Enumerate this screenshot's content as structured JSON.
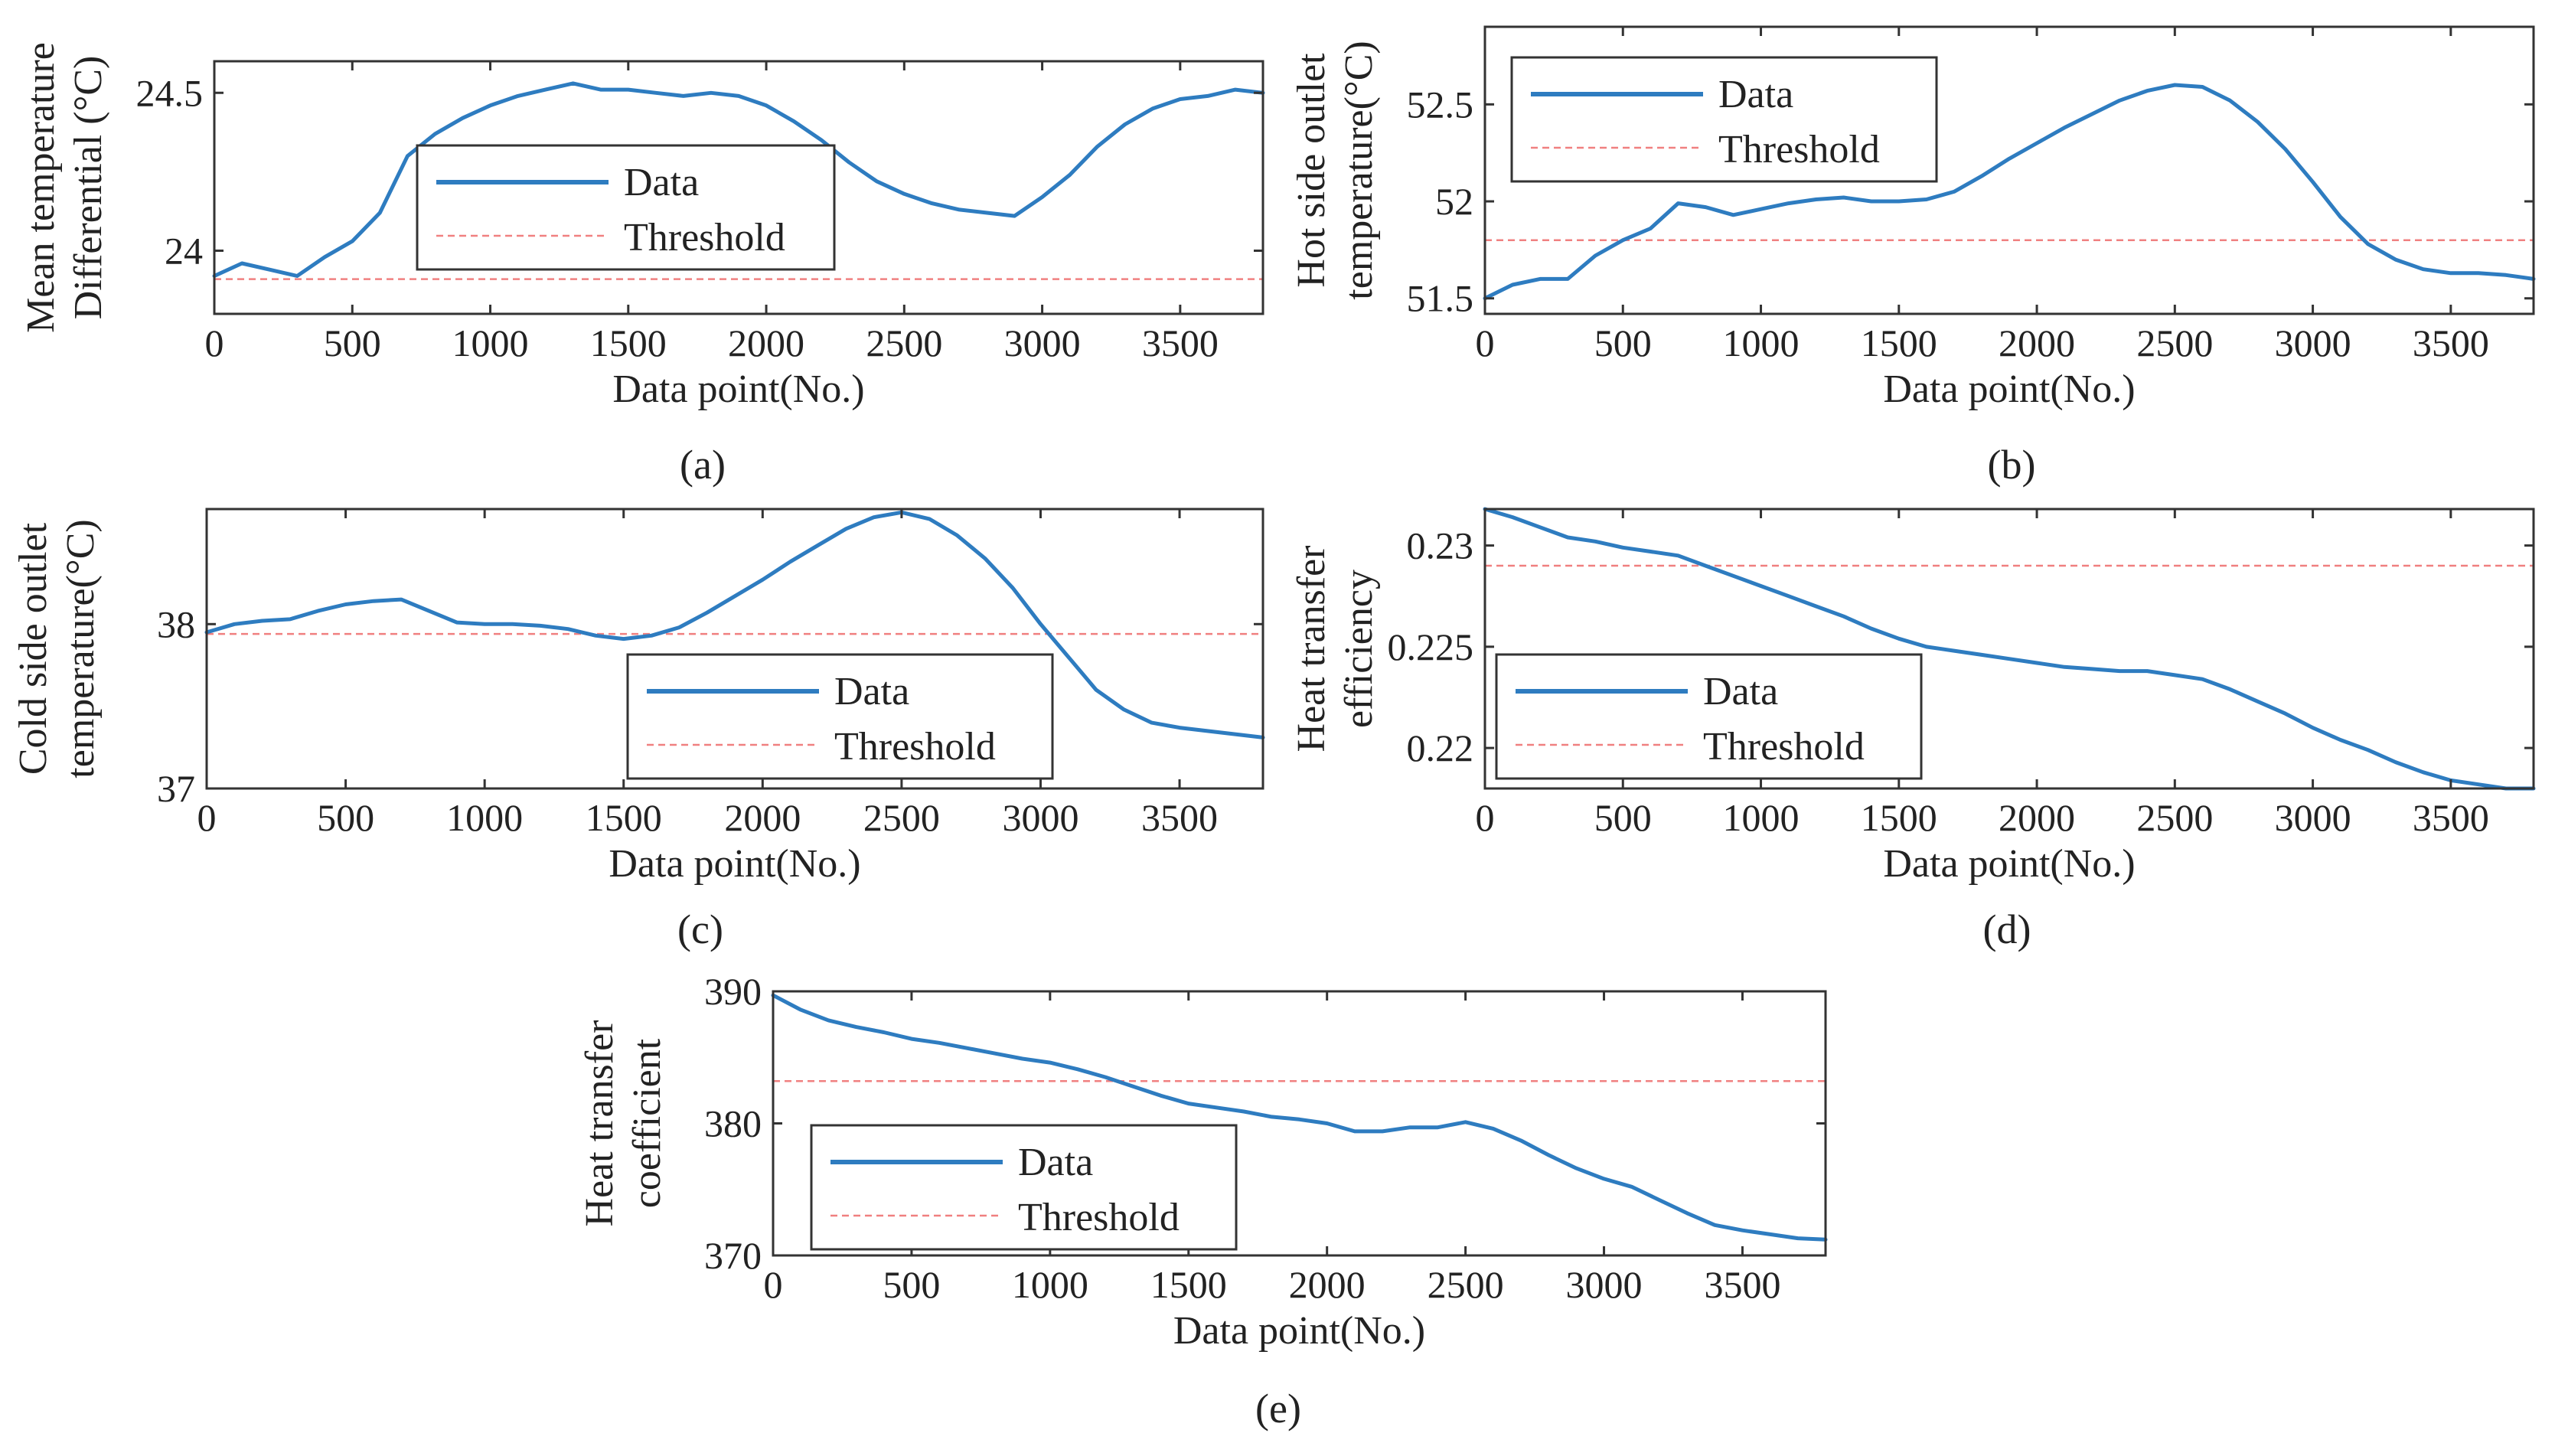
{
  "colors": {
    "data": "#2e7cc0",
    "threshold": "#f08080",
    "axis": "#333333",
    "text": "#222222"
  },
  "chart_data": [
    {
      "id": "a",
      "type": "line",
      "caption": "(a)",
      "xlabel": "Data point(No.)",
      "ylabel": [
        "Mean temperature",
        "Differential (°C)"
      ],
      "xlim": [
        0,
        3800
      ],
      "ylim": [
        23.8,
        24.6
      ],
      "xticks": [
        0,
        500,
        1000,
        1500,
        2000,
        2500,
        3000,
        3500
      ],
      "xtick_labels": [
        "0",
        "500",
        "1000",
        "1500",
        "2000",
        "2500",
        "3000",
        "3500"
      ],
      "yticks": [
        24,
        24.5
      ],
      "ytick_labels": [
        "24",
        "24.5"
      ],
      "legend": {
        "position": "center",
        "labels": [
          "Data",
          "Threshold"
        ]
      },
      "threshold": 23.91,
      "series": [
        {
          "name": "Data",
          "x": [
            0,
            100,
            200,
            300,
            400,
            500,
            600,
            700,
            800,
            900,
            1000,
            1100,
            1200,
            1300,
            1400,
            1500,
            1600,
            1700,
            1800,
            1900,
            2000,
            2100,
            2200,
            2300,
            2400,
            2500,
            2600,
            2700,
            2800,
            2900,
            3000,
            3100,
            3200,
            3300,
            3400,
            3500,
            3600,
            3700,
            3800
          ],
          "y": [
            23.92,
            23.96,
            23.94,
            23.92,
            23.98,
            24.03,
            24.12,
            24.3,
            24.37,
            24.42,
            24.46,
            24.49,
            24.51,
            24.53,
            24.51,
            24.51,
            24.5,
            24.49,
            24.5,
            24.49,
            24.46,
            24.41,
            24.35,
            24.28,
            24.22,
            24.18,
            24.15,
            24.13,
            24.12,
            24.11,
            24.17,
            24.24,
            24.33,
            24.4,
            24.45,
            24.48,
            24.49,
            24.51,
            24.5
          ]
        },
        {
          "name": "Threshold",
          "x": [
            0,
            3800
          ],
          "y": [
            23.91,
            23.91
          ]
        }
      ]
    },
    {
      "id": "b",
      "type": "line",
      "caption": "(b)",
      "xlabel": "Data point(No.)",
      "ylabel": [
        "Hot side outlet",
        "temperature(°C)"
      ],
      "xlim": [
        0,
        3800
      ],
      "ylim": [
        51.42,
        52.9
      ],
      "xticks": [
        0,
        500,
        1000,
        1500,
        2000,
        2500,
        3000,
        3500
      ],
      "xtick_labels": [
        "0",
        "500",
        "1000",
        "1500",
        "2000",
        "2500",
        "3000",
        "3500"
      ],
      "yticks": [
        51.5,
        52,
        52.5
      ],
      "ytick_labels": [
        "51.5",
        "52",
        "52.5"
      ],
      "legend": {
        "position": "top-left",
        "labels": [
          "Data",
          "Threshold"
        ]
      },
      "threshold": 51.8,
      "series": [
        {
          "name": "Data",
          "x": [
            0,
            100,
            200,
            300,
            400,
            500,
            600,
            700,
            800,
            900,
            1000,
            1100,
            1200,
            1300,
            1400,
            1500,
            1600,
            1700,
            1800,
            1900,
            2000,
            2100,
            2200,
            2300,
            2400,
            2500,
            2600,
            2700,
            2800,
            2900,
            3000,
            3100,
            3200,
            3300,
            3400,
            3500,
            3600,
            3700,
            3800
          ],
          "y": [
            51.5,
            51.57,
            51.6,
            51.6,
            51.72,
            51.8,
            51.86,
            51.99,
            51.97,
            51.93,
            51.96,
            51.99,
            52.01,
            52.02,
            52.0,
            52.0,
            52.01,
            52.05,
            52.13,
            52.22,
            52.3,
            52.38,
            52.45,
            52.52,
            52.57,
            52.6,
            52.59,
            52.52,
            52.41,
            52.27,
            52.1,
            51.92,
            51.78,
            51.7,
            51.65,
            51.63,
            51.63,
            51.62,
            51.6
          ]
        },
        {
          "name": "Threshold",
          "x": [
            0,
            3800
          ],
          "y": [
            51.8,
            51.8
          ]
        }
      ]
    },
    {
      "id": "c",
      "type": "line",
      "caption": "(c)",
      "xlabel": "Data point(No.)",
      "ylabel": [
        "Cold side outlet",
        "temperature(°C)"
      ],
      "xlim": [
        0,
        3800
      ],
      "ylim": [
        37.0,
        38.7
      ],
      "xticks": [
        0,
        500,
        1000,
        1500,
        2000,
        2500,
        3000,
        3500
      ],
      "xtick_labels": [
        "0",
        "500",
        "1000",
        "1500",
        "2000",
        "2500",
        "3000",
        "3500"
      ],
      "yticks": [
        37,
        38
      ],
      "ytick_labels": [
        "37",
        "38"
      ],
      "legend": {
        "position": "bottom-center",
        "labels": [
          "Data",
          "Threshold"
        ]
      },
      "threshold": 37.94,
      "series": [
        {
          "name": "Data",
          "x": [
            0,
            100,
            200,
            300,
            400,
            500,
            600,
            700,
            800,
            900,
            1000,
            1100,
            1200,
            1300,
            1400,
            1500,
            1600,
            1700,
            1800,
            1900,
            2000,
            2100,
            2200,
            2300,
            2400,
            2500,
            2600,
            2700,
            2800,
            2900,
            3000,
            3100,
            3200,
            3300,
            3400,
            3500,
            3600,
            3700,
            3800
          ],
          "y": [
            37.95,
            38.0,
            38.02,
            38.03,
            38.08,
            38.12,
            38.14,
            38.15,
            38.08,
            38.01,
            38.0,
            38.0,
            37.99,
            37.97,
            37.93,
            37.91,
            37.93,
            37.98,
            38.07,
            38.17,
            38.27,
            38.38,
            38.48,
            38.58,
            38.65,
            38.68,
            38.64,
            38.54,
            38.4,
            38.22,
            38.0,
            37.8,
            37.6,
            37.48,
            37.4,
            37.37,
            37.35,
            37.33,
            37.31
          ]
        },
        {
          "name": "Threshold",
          "x": [
            0,
            3800
          ],
          "y": [
            37.94,
            37.94
          ]
        }
      ]
    },
    {
      "id": "d",
      "type": "line",
      "caption": "(d)",
      "xlabel": "Data point(No.)",
      "ylabel": [
        "Heat transfer",
        "efficiency"
      ],
      "xlim": [
        0,
        3800
      ],
      "ylim": [
        0.218,
        0.2318
      ],
      "xticks": [
        0,
        500,
        1000,
        1500,
        2000,
        2500,
        3000,
        3500
      ],
      "xtick_labels": [
        "0",
        "500",
        "1000",
        "1500",
        "2000",
        "2500",
        "3000",
        "3500"
      ],
      "yticks": [
        0.22,
        0.225,
        0.23
      ],
      "ytick_labels": [
        "0.22",
        "0.225",
        "0.23"
      ],
      "legend": {
        "position": "bottom-left",
        "labels": [
          "Data",
          "Threshold"
        ]
      },
      "threshold": 0.229,
      "series": [
        {
          "name": "Data",
          "x": [
            0,
            100,
            200,
            300,
            400,
            500,
            600,
            700,
            800,
            900,
            1000,
            1100,
            1200,
            1300,
            1400,
            1500,
            1600,
            1700,
            1800,
            1900,
            2000,
            2100,
            2200,
            2300,
            2400,
            2500,
            2600,
            2700,
            2800,
            2900,
            3000,
            3100,
            3200,
            3300,
            3400,
            3500,
            3600,
            3700,
            3800
          ],
          "y": [
            0.2318,
            0.2314,
            0.2309,
            0.2304,
            0.2302,
            0.2299,
            0.2297,
            0.2295,
            0.229,
            0.2285,
            0.228,
            0.2275,
            0.227,
            0.2265,
            0.2259,
            0.2254,
            0.225,
            0.2248,
            0.2246,
            0.2244,
            0.2242,
            0.224,
            0.2239,
            0.2238,
            0.2238,
            0.2236,
            0.2234,
            0.2229,
            0.2223,
            0.2217,
            0.221,
            0.2204,
            0.2199,
            0.2193,
            0.2188,
            0.2184,
            0.2182,
            0.218,
            0.218
          ]
        },
        {
          "name": "Threshold",
          "x": [
            0,
            3800
          ],
          "y": [
            0.229,
            0.229
          ]
        }
      ]
    },
    {
      "id": "e",
      "type": "line",
      "caption": "(e)",
      "xlabel": "Data point(No.)",
      "ylabel": [
        "Heat transfer",
        "coefficient"
      ],
      "xlim": [
        0,
        3800
      ],
      "ylim": [
        370.0,
        390.0
      ],
      "xticks": [
        0,
        500,
        1000,
        1500,
        2000,
        2500,
        3000,
        3500
      ],
      "xtick_labels": [
        "0",
        "500",
        "1000",
        "1500",
        "2000",
        "2500",
        "3000",
        "3500"
      ],
      "yticks": [
        370,
        380,
        390
      ],
      "ytick_labels": [
        "370",
        "380",
        "390"
      ],
      "legend": {
        "position": "bottom-left",
        "labels": [
          "Data",
          "Threshold"
        ]
      },
      "threshold": 383.2,
      "series": [
        {
          "name": "Data",
          "x": [
            0,
            100,
            200,
            300,
            400,
            500,
            600,
            700,
            800,
            900,
            1000,
            1100,
            1200,
            1300,
            1400,
            1500,
            1600,
            1700,
            1800,
            1900,
            2000,
            2100,
            2200,
            2300,
            2400,
            2500,
            2600,
            2700,
            2800,
            2900,
            3000,
            3100,
            3200,
            3300,
            3400,
            3500,
            3600,
            3700,
            3800
          ],
          "y": [
            389.7,
            388.6,
            387.8,
            387.3,
            386.9,
            386.4,
            386.1,
            385.7,
            385.3,
            384.9,
            384.6,
            384.1,
            383.5,
            382.8,
            382.1,
            381.5,
            381.2,
            380.9,
            380.5,
            380.3,
            380.0,
            379.4,
            379.4,
            379.7,
            379.7,
            380.1,
            379.6,
            378.7,
            377.6,
            376.6,
            375.8,
            375.2,
            374.2,
            373.2,
            372.3,
            371.9,
            371.6,
            371.3,
            371.2
          ]
        },
        {
          "name": "Threshold",
          "x": [
            0,
            3800
          ],
          "y": [
            383.2,
            383.2
          ]
        }
      ]
    }
  ]
}
